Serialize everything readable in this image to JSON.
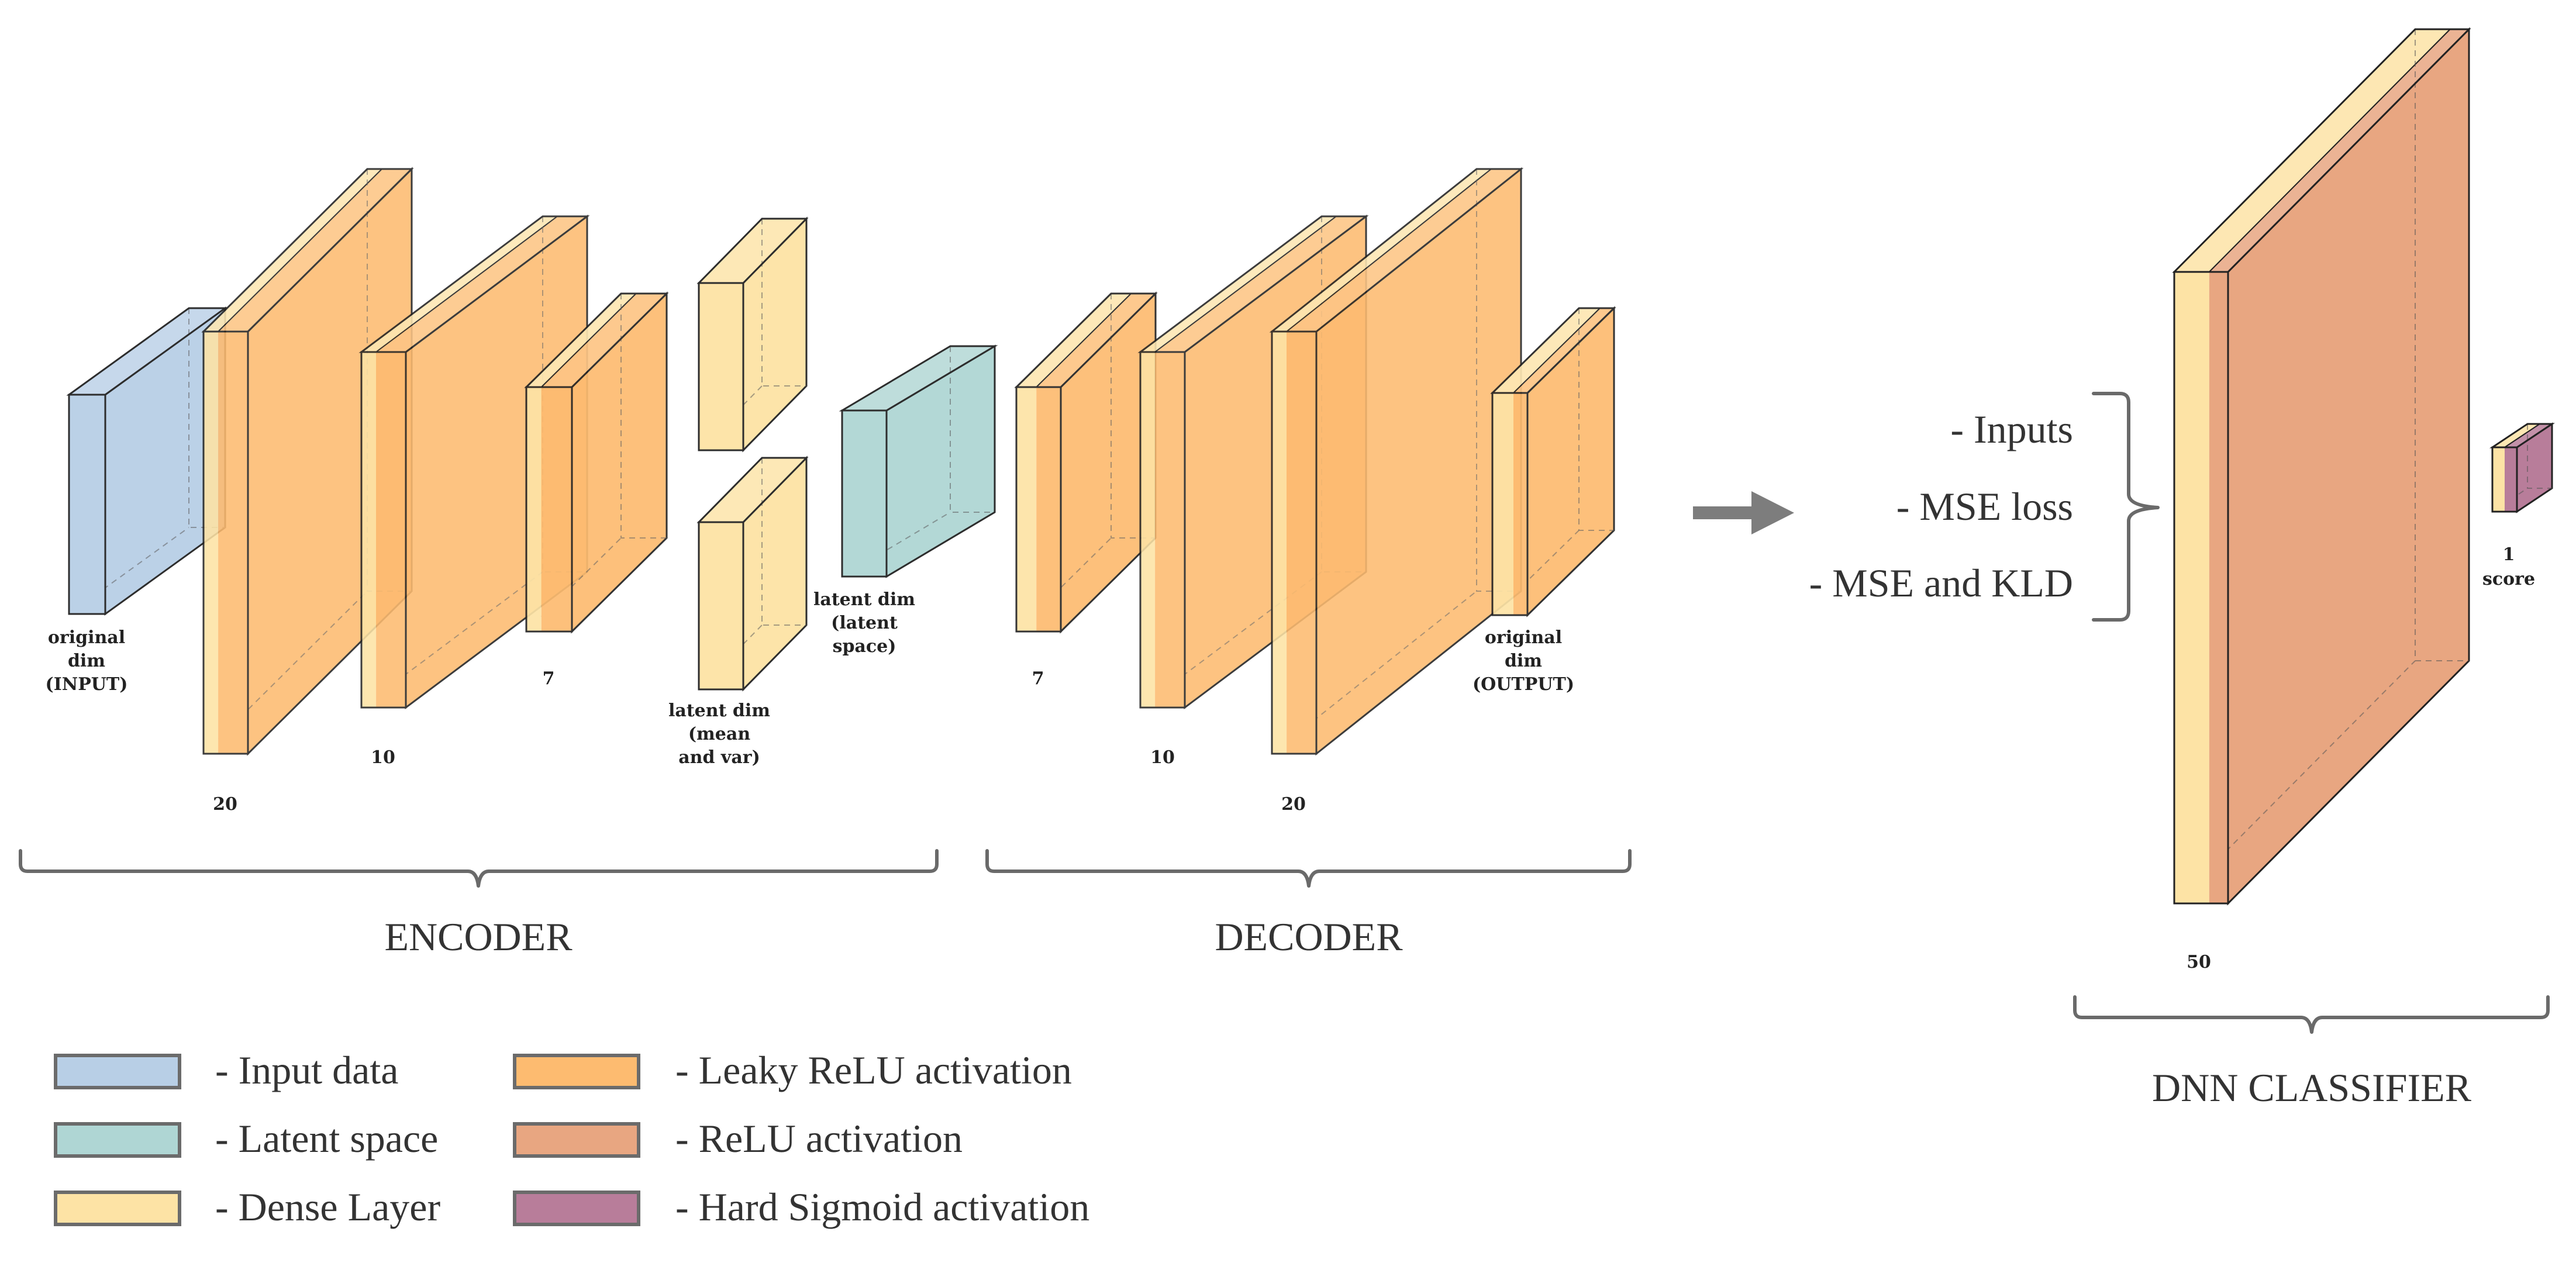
{
  "colors": {
    "input": "#b8cfe6",
    "latent": "#afd6d4",
    "dense": "#fde3a5",
    "leaky_relu": "#fdbb70",
    "relu": "#e8a681",
    "hard_sigmoid": "#b87d9a",
    "border": "#6b6b6b"
  },
  "encoder": {
    "input_label": [
      "original",
      "dim",
      "(INPUT)"
    ],
    "layer1_label": "20",
    "layer2_label": "10",
    "layer3_label": "7",
    "mean_var_label": [
      "latent dim",
      "(mean",
      "and var)"
    ],
    "latent_label": [
      "latent dim",
      "(latent",
      "space)"
    ],
    "section_title": "ENCODER"
  },
  "decoder": {
    "layer1_label": "7",
    "layer2_label": "10",
    "layer3_label": "20",
    "output_label": [
      "original",
      "dim",
      "(OUTPUT)"
    ],
    "section_title": "DECODER"
  },
  "classifier_inputs": {
    "items": [
      "- Inputs",
      "- MSE loss",
      "- MSE and KLD"
    ]
  },
  "classifier": {
    "layer_label": "50",
    "score_label": [
      "1",
      "score"
    ],
    "section_title": "DNN CLASSIFIER"
  },
  "legend": {
    "left": [
      {
        "color_key": "input",
        "text": "-  Input data"
      },
      {
        "color_key": "latent",
        "text": "-  Latent space"
      },
      {
        "color_key": "dense",
        "text": "-  Dense Layer"
      }
    ],
    "right": [
      {
        "color_key": "leaky_relu",
        "text": "-  Leaky ReLU activation"
      },
      {
        "color_key": "relu",
        "text": "-  ReLU activation"
      },
      {
        "color_key": "hard_sigmoid",
        "text": "-  Hard Sigmoid activation"
      }
    ]
  }
}
